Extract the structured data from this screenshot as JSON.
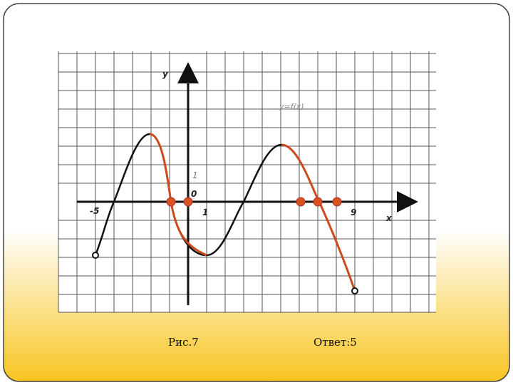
{
  "labels": {
    "y": "y",
    "x": "x",
    "function": "y=f(x)",
    "one_y": "1",
    "origin": "0",
    "minus_five": "-5",
    "one_x": "1",
    "nine": "9"
  },
  "caption": "Рис.7",
  "answer": "Ответ:5"
}
